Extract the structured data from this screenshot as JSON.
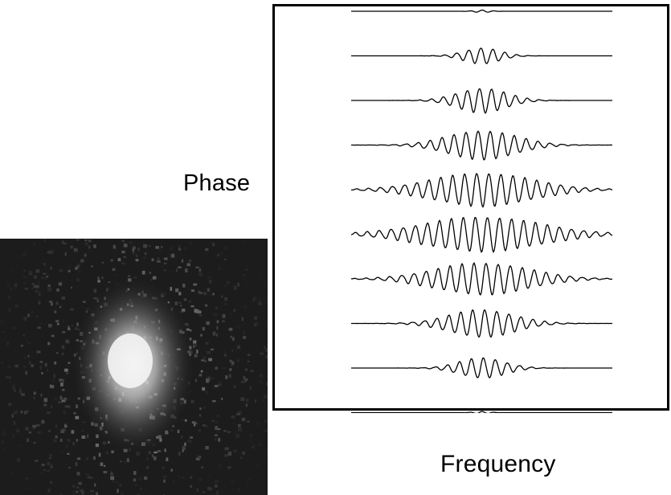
{
  "labels": {
    "y_axis": "Phase",
    "x_axis": "Frequency"
  },
  "traces": [
    {
      "amplitude": 0.08,
      "spread": 10
    },
    {
      "amplitude": 0.55,
      "spread": 22
    },
    {
      "amplitude": 0.85,
      "spread": 30
    },
    {
      "amplitude": 1.0,
      "spread": 42
    },
    {
      "amplitude": 1.15,
      "spread": 62
    },
    {
      "amplitude": 1.2,
      "spread": 72
    },
    {
      "amplitude": 1.1,
      "spread": 58
    },
    {
      "amplitude": 0.95,
      "spread": 40
    },
    {
      "amplitude": 0.7,
      "spread": 28
    },
    {
      "amplitude": 0.08,
      "spread": 10
    }
  ],
  "speckle": {
    "background": "#1c1c1c",
    "core": "#f4f4f4"
  }
}
